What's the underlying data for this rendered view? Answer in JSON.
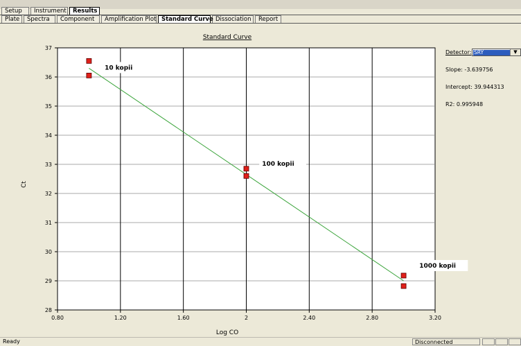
{
  "tabs_top": [
    {
      "label": "Setup",
      "active": false
    },
    {
      "label": "Instrument",
      "active": false
    },
    {
      "label": "Results",
      "active": true
    }
  ],
  "tabs_sub": [
    {
      "label": "Plate",
      "active": false
    },
    {
      "label": "Spectra",
      "active": false
    },
    {
      "label": "Component",
      "active": false
    },
    {
      "label": "Amplification Plot",
      "active": false
    },
    {
      "label": "Standard Curve",
      "active": true
    },
    {
      "label": "Dissociation",
      "active": false
    },
    {
      "label": "Report",
      "active": false
    }
  ],
  "side": {
    "detector_label": "Detector:",
    "detector_value": "SRY",
    "slope": "Slope: -3.639756",
    "intercept": "Intercept: 39.944313",
    "r2": "R2: 0.995948"
  },
  "status": {
    "left": "Ready",
    "connection": "Disconnected"
  },
  "colors": {
    "point_fill": "#e0201a",
    "fit_line": "#3aa43a",
    "plot_bg": "#ffffff",
    "grid_major": "#000000",
    "grid_minor": "#8c8c8c"
  },
  "chart_data": {
    "type": "scatter",
    "title": "Standard Curve",
    "xlabel": "Log CO",
    "ylabel": "Ct",
    "xlim": [
      0.8,
      3.2
    ],
    "ylim": [
      28,
      37
    ],
    "x_ticks": [
      "0.80",
      "1.20",
      "1.60",
      "2",
      "2.40",
      "2.80",
      "3.20"
    ],
    "y_ticks": [
      "28",
      "29",
      "30",
      "31",
      "32",
      "33",
      "34",
      "35",
      "36",
      "37"
    ],
    "grid": true,
    "points": [
      {
        "x": 1,
        "y": 36.55
      },
      {
        "x": 1,
        "y": 36.05
      },
      {
        "x": 2,
        "y": 32.85
      },
      {
        "x": 2,
        "y": 32.6
      },
      {
        "x": 3,
        "y": 29.18
      },
      {
        "x": 3,
        "y": 28.82
      }
    ],
    "fit_line": {
      "x": [
        1,
        3
      ],
      "y": [
        36.3,
        29.0
      ]
    },
    "annotations": [
      {
        "text": "10 kopii",
        "x": 1.1,
        "y": 36.3
      },
      {
        "text": "100 kopii",
        "x": 2.1,
        "y": 33.0
      },
      {
        "text": "1000 kopii",
        "x": 3.1,
        "y": 29.5
      }
    ]
  }
}
